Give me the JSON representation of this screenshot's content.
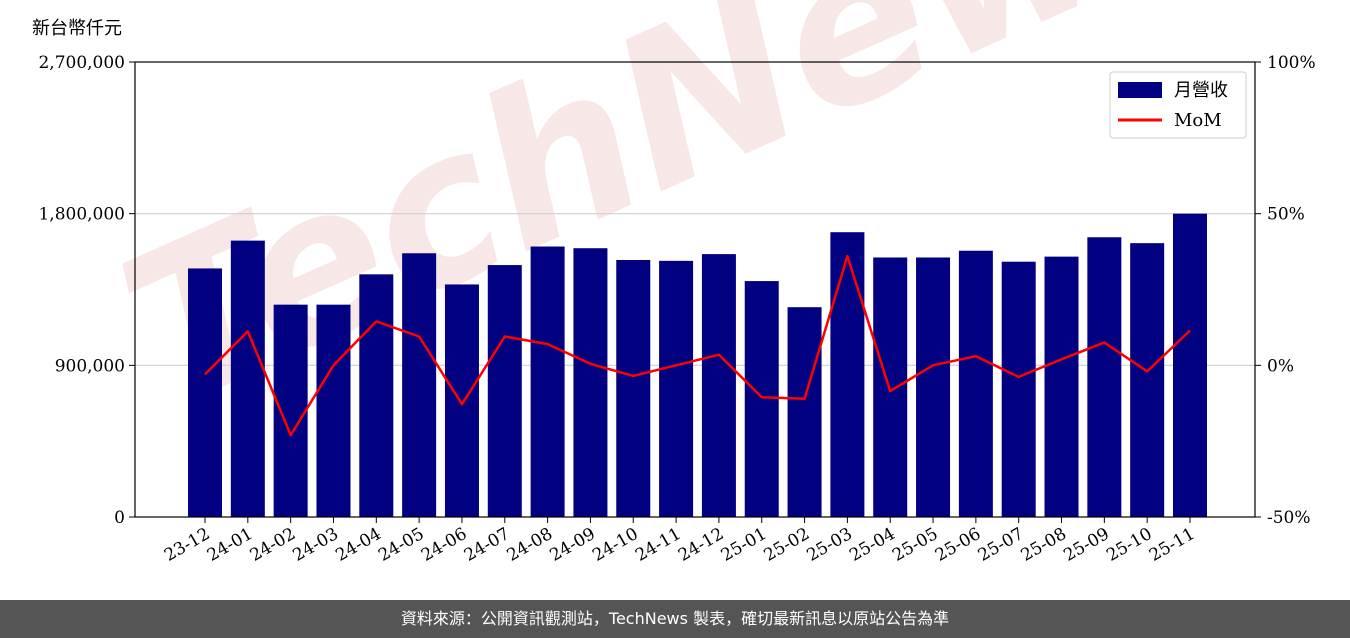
{
  "unit_label": "新台幣仟元",
  "footer_text": "資料來源：公開資訊觀測站，TechNews 製表，確切最新訊息以原站公告為準",
  "watermark": "TechNews",
  "colors": {
    "bar": "#000080",
    "line": "#ff0000",
    "grid": "#d0d0d0",
    "footer_bg": "#555555"
  },
  "chart_data": {
    "type": "bar",
    "categories": [
      "23-12",
      "24-01",
      "24-02",
      "24-03",
      "24-04",
      "24-05",
      "24-06",
      "24-07",
      "24-08",
      "24-09",
      "24-10",
      "24-11",
      "24-12",
      "25-01",
      "25-02",
      "25-03",
      "25-04",
      "25-05",
      "25-06",
      "25-07",
      "25-08",
      "25-09",
      "25-10",
      "25-11"
    ],
    "series": [
      {
        "name": "月營收",
        "axis": "left",
        "kind": "bar",
        "values": [
          1475000,
          1640000,
          1260000,
          1260000,
          1440000,
          1565000,
          1380000,
          1495000,
          1605000,
          1595000,
          1525000,
          1520000,
          1560000,
          1400000,
          1245000,
          1690000,
          1540000,
          1540000,
          1580000,
          1515000,
          1545000,
          1660000,
          1625000,
          1800000
        ]
      },
      {
        "name": "MoM",
        "axis": "right",
        "kind": "line",
        "values": [
          -3,
          11.2,
          -23,
          0,
          14.5,
          9.5,
          -12.8,
          9.5,
          7,
          0.5,
          -3.5,
          0,
          3.5,
          -10.5,
          -11,
          36,
          -8.5,
          0,
          3,
          -3.8,
          2,
          7.5,
          -2,
          11.5
        ]
      }
    ],
    "left_axis": {
      "min": 0,
      "max": 2700000,
      "ticks": [
        "0",
        "900,000",
        "1,800,000",
        "2,700,000"
      ]
    },
    "right_axis": {
      "min": -50,
      "max": 100,
      "ticks": [
        "-50%",
        "0%",
        "50%",
        "100%"
      ]
    },
    "legend": {
      "placement": "top-right",
      "entries": [
        "月營收",
        "MoM"
      ]
    },
    "grid": "horizontal"
  }
}
